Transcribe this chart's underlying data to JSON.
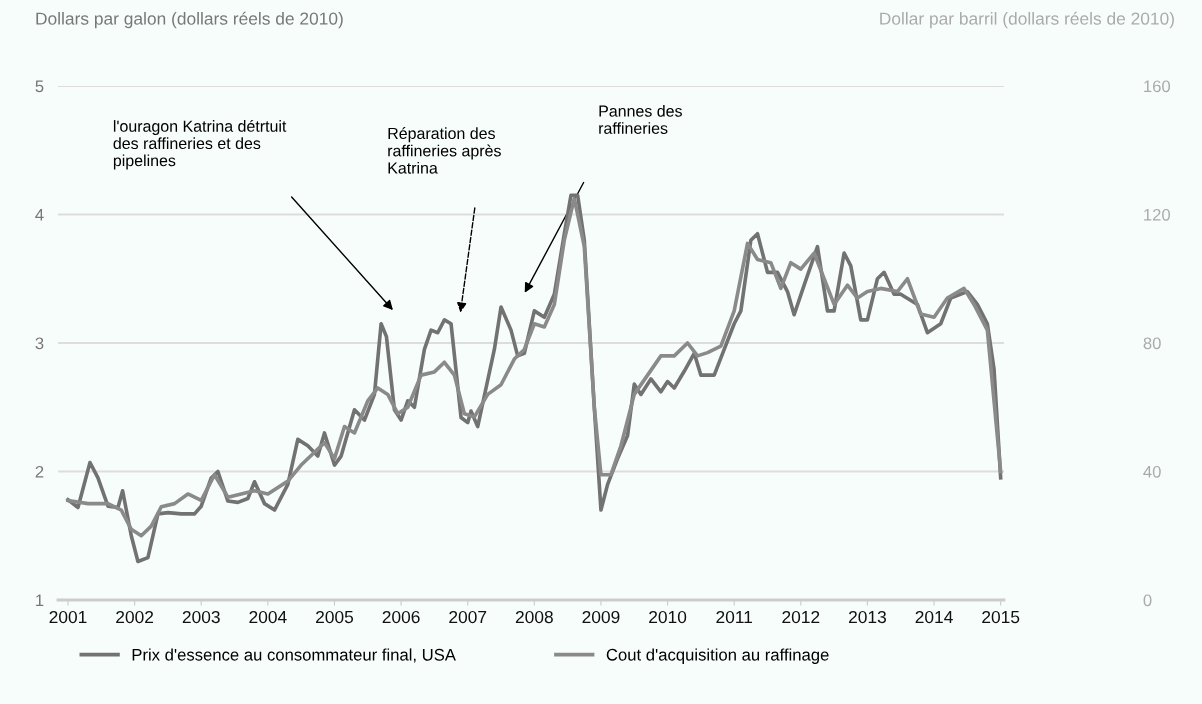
{
  "chart_data": {
    "type": "line",
    "ylabel": "Dollars par galon (dollars réels de 2010)",
    "y2label": "Dollar par barril (dollars réels de 2010)",
    "xlim": [
      2000.85,
      2015.05
    ],
    "xticks": [
      2001,
      2002,
      2003,
      2004,
      2005,
      2006,
      2007,
      2008,
      2009,
      2010,
      2011,
      2012,
      2013,
      2014,
      2015
    ],
    "ylim": [
      1,
      5
    ],
    "yticks": [
      1,
      2,
      3,
      4,
      5
    ],
    "y2lim": [
      0,
      160
    ],
    "y2ticks": [
      0,
      40,
      80,
      120,
      160
    ],
    "grid": "y",
    "legend": "bottom",
    "line_style": "solid",
    "marker": "none",
    "series": [
      {
        "name": "Prix d'essence au consommateur final, USA",
        "color": "#727272",
        "x": [
          2001.0,
          2001.15,
          2001.33,
          2001.45,
          2001.6,
          2001.75,
          2001.82,
          2001.95,
          2002.05,
          2002.2,
          2002.35,
          2002.5,
          2002.7,
          2002.9,
          2003.0,
          2003.15,
          2003.25,
          2003.4,
          2003.55,
          2003.7,
          2003.8,
          2003.95,
          2004.1,
          2004.3,
          2004.45,
          2004.6,
          2004.75,
          2004.85,
          2005.0,
          2005.1,
          2005.3,
          2005.45,
          2005.6,
          2005.7,
          2005.78,
          2005.9,
          2006.0,
          2006.1,
          2006.2,
          2006.35,
          2006.45,
          2006.55,
          2006.65,
          2006.75,
          2006.9,
          2007.0,
          2007.05,
          2007.15,
          2007.4,
          2007.5,
          2007.65,
          2007.75,
          2007.85,
          2008.0,
          2008.15,
          2008.3,
          2008.45,
          2008.55,
          2008.65,
          2008.75,
          2008.9,
          2009.0,
          2009.1,
          2009.25,
          2009.4,
          2009.5,
          2009.6,
          2009.75,
          2009.9,
          2010.0,
          2010.1,
          2010.25,
          2010.4,
          2010.5,
          2010.7,
          2010.85,
          2011.0,
          2011.1,
          2011.25,
          2011.35,
          2011.5,
          2011.65,
          2011.8,
          2011.9,
          2012.05,
          2012.25,
          2012.4,
          2012.5,
          2012.65,
          2012.75,
          2012.9,
          2013.0,
          2013.15,
          2013.25,
          2013.4,
          2013.5,
          2013.75,
          2013.9,
          2014.1,
          2014.25,
          2014.5,
          2014.65,
          2014.8,
          2014.9,
          2015.0
        ],
        "values": [
          1.78,
          1.72,
          2.07,
          1.95,
          1.73,
          1.72,
          1.85,
          1.5,
          1.3,
          1.33,
          1.67,
          1.68,
          1.67,
          1.67,
          1.73,
          1.95,
          2.0,
          1.77,
          1.76,
          1.79,
          1.92,
          1.75,
          1.7,
          1.9,
          2.25,
          2.2,
          2.12,
          2.3,
          2.05,
          2.12,
          2.48,
          2.4,
          2.6,
          3.15,
          3.05,
          2.48,
          2.4,
          2.55,
          2.5,
          2.95,
          3.1,
          3.08,
          3.18,
          3.15,
          2.42,
          2.38,
          2.47,
          2.35,
          2.95,
          3.28,
          3.1,
          2.9,
          2.92,
          3.25,
          3.2,
          3.38,
          3.85,
          4.15,
          4.15,
          3.8,
          2.5,
          1.7,
          1.9,
          2.1,
          2.28,
          2.68,
          2.6,
          2.72,
          2.62,
          2.7,
          2.65,
          2.78,
          2.92,
          2.75,
          2.75,
          2.95,
          3.15,
          3.25,
          3.8,
          3.85,
          3.55,
          3.55,
          3.4,
          3.22,
          3.45,
          3.75,
          3.25,
          3.25,
          3.7,
          3.6,
          3.18,
          3.18,
          3.5,
          3.55,
          3.38,
          3.38,
          3.3,
          3.08,
          3.15,
          3.35,
          3.4,
          3.3,
          3.15,
          2.8,
          1.95
        ]
      },
      {
        "name": "Cout d'acquisition au raffinage",
        "color": "#8a8a8a",
        "axis": "y2",
        "x": [
          2001.0,
          2001.3,
          2001.6,
          2001.8,
          2001.95,
          2002.1,
          2002.25,
          2002.4,
          2002.6,
          2002.8,
          2003.0,
          2003.2,
          2003.4,
          2003.6,
          2003.8,
          2004.0,
          2004.3,
          2004.5,
          2004.7,
          2004.85,
          2005.0,
          2005.15,
          2005.3,
          2005.5,
          2005.65,
          2005.8,
          2005.95,
          2006.1,
          2006.3,
          2006.5,
          2006.65,
          2006.8,
          2006.95,
          2007.1,
          2007.3,
          2007.5,
          2007.7,
          2007.85,
          2008.0,
          2008.15,
          2008.3,
          2008.45,
          2008.6,
          2008.75,
          2008.9,
          2009.0,
          2009.15,
          2009.3,
          2009.5,
          2009.7,
          2009.9,
          2010.1,
          2010.3,
          2010.45,
          2010.6,
          2010.8,
          2011.0,
          2011.2,
          2011.35,
          2011.55,
          2011.7,
          2011.85,
          2012.0,
          2012.2,
          2012.35,
          2012.5,
          2012.7,
          2012.85,
          2013.0,
          2013.2,
          2013.45,
          2013.6,
          2013.8,
          2014.0,
          2014.2,
          2014.45,
          2014.6,
          2014.8,
          2015.0
        ],
        "values": [
          31,
          30,
          30,
          28,
          22,
          20,
          23,
          29,
          30,
          33,
          31,
          39,
          32,
          33,
          34,
          33,
          37,
          42,
          46,
          49,
          44,
          54,
          52,
          62,
          66,
          64,
          58,
          60,
          70,
          71,
          74,
          70,
          58,
          57,
          64,
          67,
          75,
          78,
          86,
          85,
          92,
          112,
          125,
          110,
          60,
          39,
          39,
          48,
          64,
          70,
          76,
          76,
          80,
          76,
          77,
          79,
          90,
          111,
          106,
          105,
          97,
          105,
          103,
          108,
          100,
          92,
          98,
          94,
          96,
          97,
          96,
          100,
          89,
          88,
          94,
          97,
          92,
          84,
          40
        ]
      }
    ],
    "annotations": [
      "l'ouragon Katrina détrtuit\ndes raffineries et des\npipelines",
      "Réparation des\nraffineries après\nKatrina",
      "Pannes des\nraffineries"
    ]
  }
}
